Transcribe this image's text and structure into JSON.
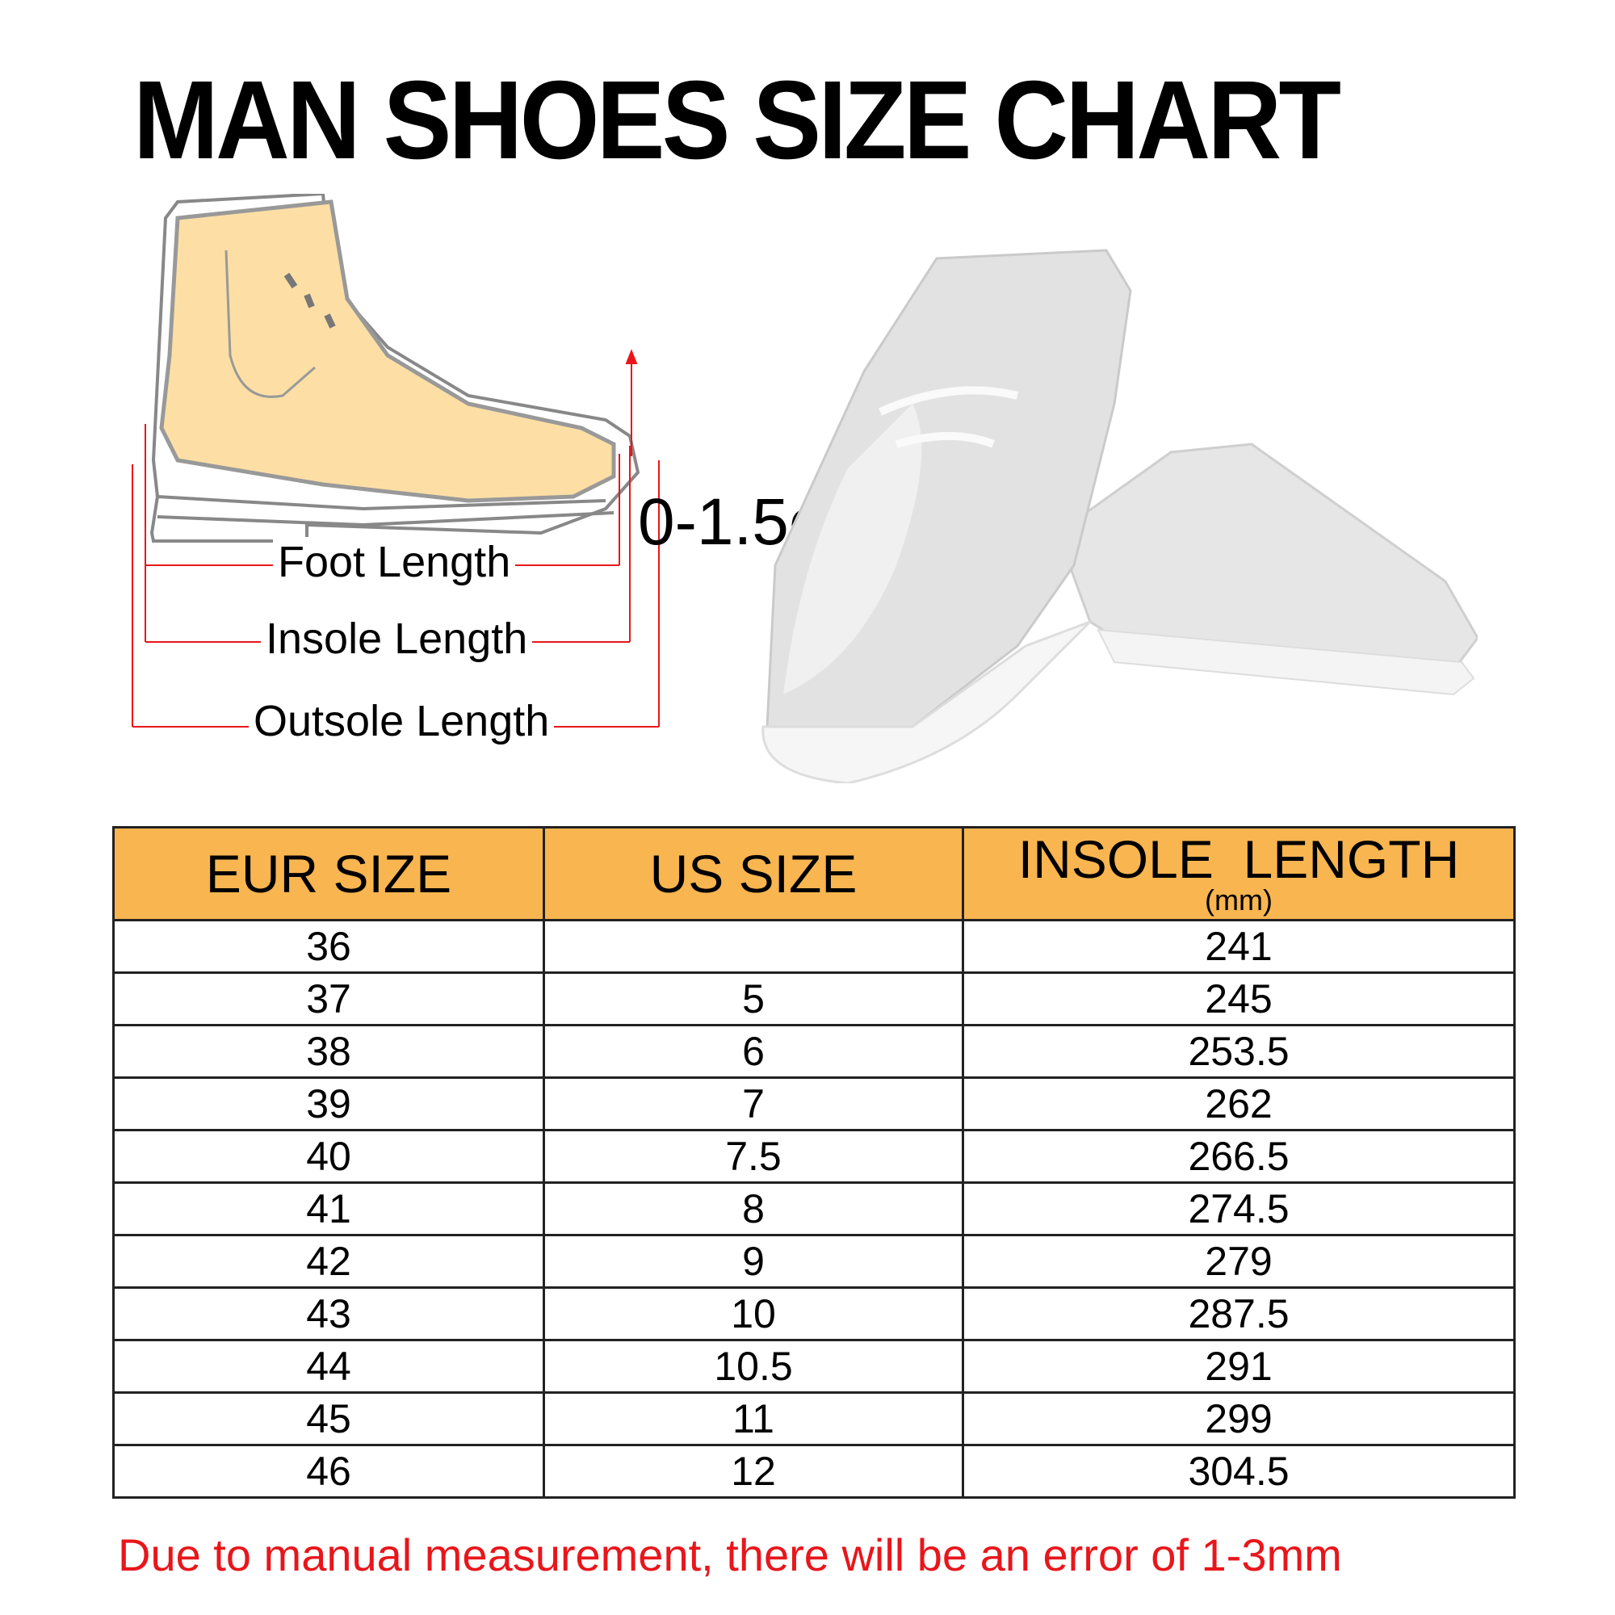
{
  "title": "MAN SHOES SIZE CHART",
  "diagram": {
    "gap_label": "0-1.5cm",
    "foot_length": "Foot Length",
    "insole_length": "Insole Length",
    "outsole_length": "Outsole Length",
    "measure_color": "#e8161b"
  },
  "table": {
    "headers": {
      "eur": "EUR SIZE",
      "us": "US SIZE",
      "insole": "INSOLE  LENGTH",
      "insole_unit": "(mm)"
    },
    "header_color": "#f8b550",
    "rows": [
      {
        "eur": "36",
        "us": "",
        "insole": "241"
      },
      {
        "eur": "37",
        "us": "5",
        "insole": "245"
      },
      {
        "eur": "38",
        "us": "6",
        "insole": "253.5"
      },
      {
        "eur": "39",
        "us": "7",
        "insole": "262"
      },
      {
        "eur": "40",
        "us": "7.5",
        "insole": "266.5"
      },
      {
        "eur": "41",
        "us": "8",
        "insole": "274.5"
      },
      {
        "eur": "42",
        "us": "9",
        "insole": "279"
      },
      {
        "eur": "43",
        "us": "10",
        "insole": "287.5"
      },
      {
        "eur": "44",
        "us": "10.5",
        "insole": "291"
      },
      {
        "eur": "45",
        "us": "11",
        "insole": "299"
      },
      {
        "eur": "46",
        "us": "12",
        "insole": "304.5"
      }
    ]
  },
  "note": "Due to manual measurement, there will be an error of 1-3mm"
}
